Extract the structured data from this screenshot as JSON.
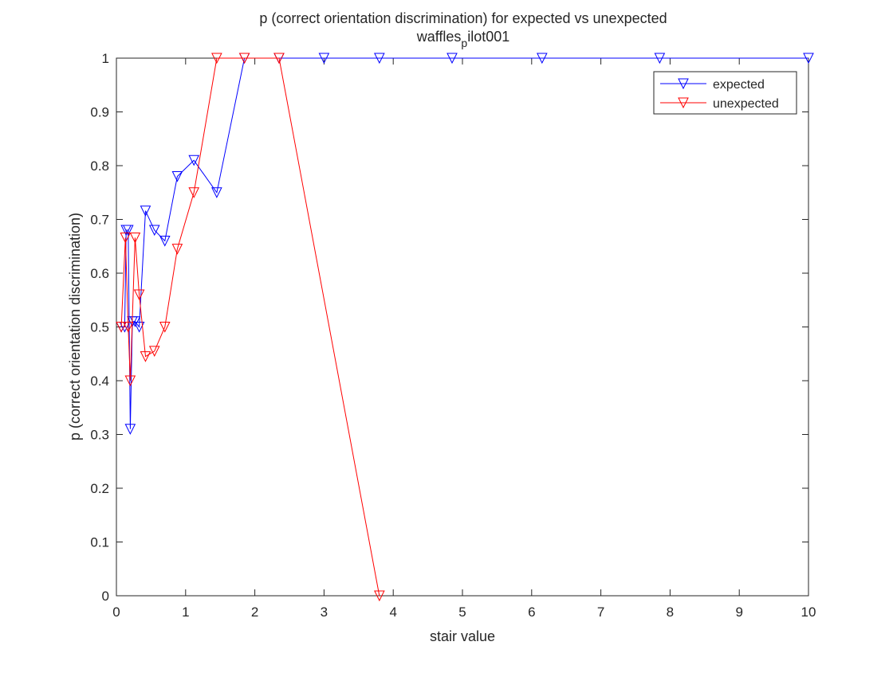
{
  "chart_data": {
    "type": "line",
    "title_line1": "p (correct orientation discrimination) for expected vs unexpected",
    "title_line2_main": "waffles",
    "title_line2_sub": "p",
    "title_line2_rest": "ilot001",
    "xlabel": "stair value",
    "ylabel": "p (correct orientation discrimination)",
    "xlim": [
      0,
      10
    ],
    "ylim": [
      0,
      1
    ],
    "xticks": [
      0,
      1,
      2,
      3,
      4,
      5,
      6,
      7,
      8,
      9,
      10
    ],
    "yticks": [
      0,
      0.1,
      0.2,
      0.3,
      0.4,
      0.5,
      0.6,
      0.7,
      0.8,
      0.9,
      1
    ],
    "xtick_labels": [
      "0",
      "1",
      "2",
      "3",
      "4",
      "5",
      "6",
      "7",
      "8",
      "9",
      "10"
    ],
    "ytick_labels": [
      "0",
      "0.1",
      "0.2",
      "0.3",
      "0.4",
      "0.5",
      "0.6",
      "0.7",
      "0.8",
      "0.9",
      "1"
    ],
    "grid": false,
    "legend_position": "top-right",
    "marker": "downward-triangle",
    "series": [
      {
        "name": "expected",
        "color": "#0000ff",
        "x": [
          0.07,
          0.12,
          0.14,
          0.17,
          0.2,
          0.23,
          0.27,
          0.33,
          0.42,
          0.55,
          0.7,
          0.88,
          1.12,
          1.45,
          1.85,
          2.35,
          3.0,
          3.8,
          4.85,
          6.15,
          7.85,
          10.0
        ],
        "y": [
          0.5,
          0.5,
          0.68,
          0.68,
          0.31,
          0.51,
          0.51,
          0.5,
          0.716,
          0.68,
          0.66,
          0.78,
          0.81,
          0.75,
          1.0,
          1.0,
          1.0,
          1.0,
          1.0,
          1.0,
          1.0,
          1.0
        ]
      },
      {
        "name": "unexpected",
        "color": "#ff0000",
        "x": [
          0.07,
          0.13,
          0.17,
          0.2,
          0.27,
          0.33,
          0.42,
          0.55,
          0.7,
          0.88,
          1.12,
          1.45,
          1.85,
          2.35,
          3.8
        ],
        "y": [
          0.5,
          0.666,
          0.5,
          0.4,
          0.666,
          0.56,
          0.445,
          0.455,
          0.5,
          0.645,
          0.75,
          1.0,
          1.0,
          1.0,
          0.0
        ]
      }
    ]
  }
}
